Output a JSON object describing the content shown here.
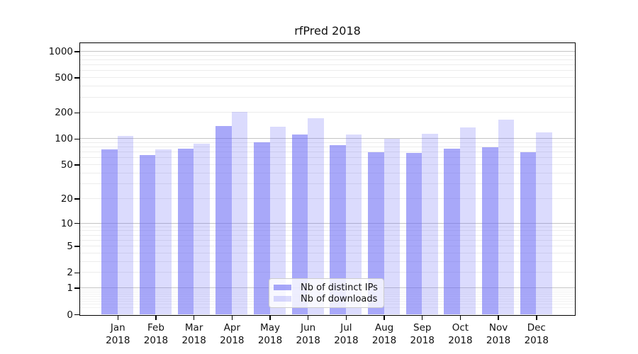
{
  "chart_data": {
    "type": "bar",
    "title": "rfPred 2018",
    "scale": "log1p",
    "categories": [
      "Jan",
      "Feb",
      "Mar",
      "Apr",
      "May",
      "Jun",
      "Jul",
      "Aug",
      "Sep",
      "Oct",
      "Nov",
      "Dec"
    ],
    "category_year": "2018",
    "yticks": [
      1000,
      500,
      200,
      100,
      50,
      20,
      10,
      5,
      2,
      1,
      0
    ],
    "ylim": [
      0,
      1250
    ],
    "grid": "horizontal, log minor and major lines",
    "legend_position": "lower center inside plot",
    "series": [
      {
        "name": "Nb of distinct IPs",
        "color": "rgba(105,105,245,0.58)",
        "values": [
          75,
          65,
          76,
          140,
          91,
          112,
          84,
          70,
          68,
          76,
          80,
          70
        ]
      },
      {
        "name": "Nb of downloads",
        "color": "rgba(105,105,245,0.24)",
        "values": [
          107,
          75,
          88,
          204,
          138,
          171,
          112,
          100,
          114,
          135,
          166,
          119
        ]
      }
    ],
    "colors": {
      "bar_base": "#6969f5",
      "grid_major": "#c4c4c4",
      "grid_minor": "#ececec",
      "grid_sub1": "#f2f2f2",
      "axis": "#000000",
      "text": "#111111",
      "legend_border": "#cccccc"
    }
  }
}
